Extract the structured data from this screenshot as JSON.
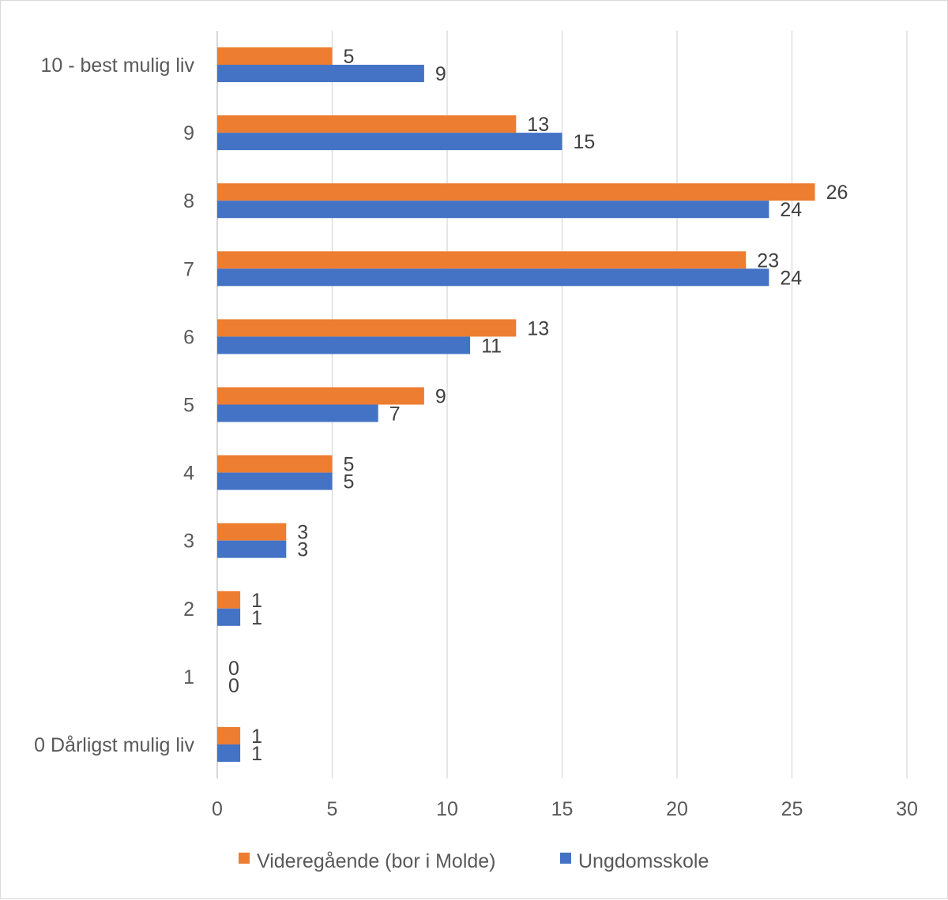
{
  "chart_data": {
    "type": "bar",
    "orientation": "horizontal",
    "categories": [
      "10 - best mulig liv",
      "9",
      "8",
      "7",
      "6",
      "5",
      "4",
      "3",
      "2",
      "1",
      "0 Dårligst mulig liv"
    ],
    "series": [
      {
        "name": "Videregående (bor i Molde)",
        "color": "#ED7D31",
        "values": [
          5,
          13,
          26,
          23,
          13,
          9,
          5,
          3,
          1,
          0,
          1
        ]
      },
      {
        "name": "Ungdomsskole",
        "color": "#4472C4",
        "values": [
          9,
          15,
          24,
          24,
          11,
          7,
          5,
          3,
          1,
          0,
          1
        ]
      }
    ],
    "xlim": [
      0,
      30
    ],
    "xticks": [
      0,
      5,
      10,
      15,
      20,
      25,
      30
    ],
    "grid": true,
    "legend_position": "bottom",
    "data_labels": true
  }
}
